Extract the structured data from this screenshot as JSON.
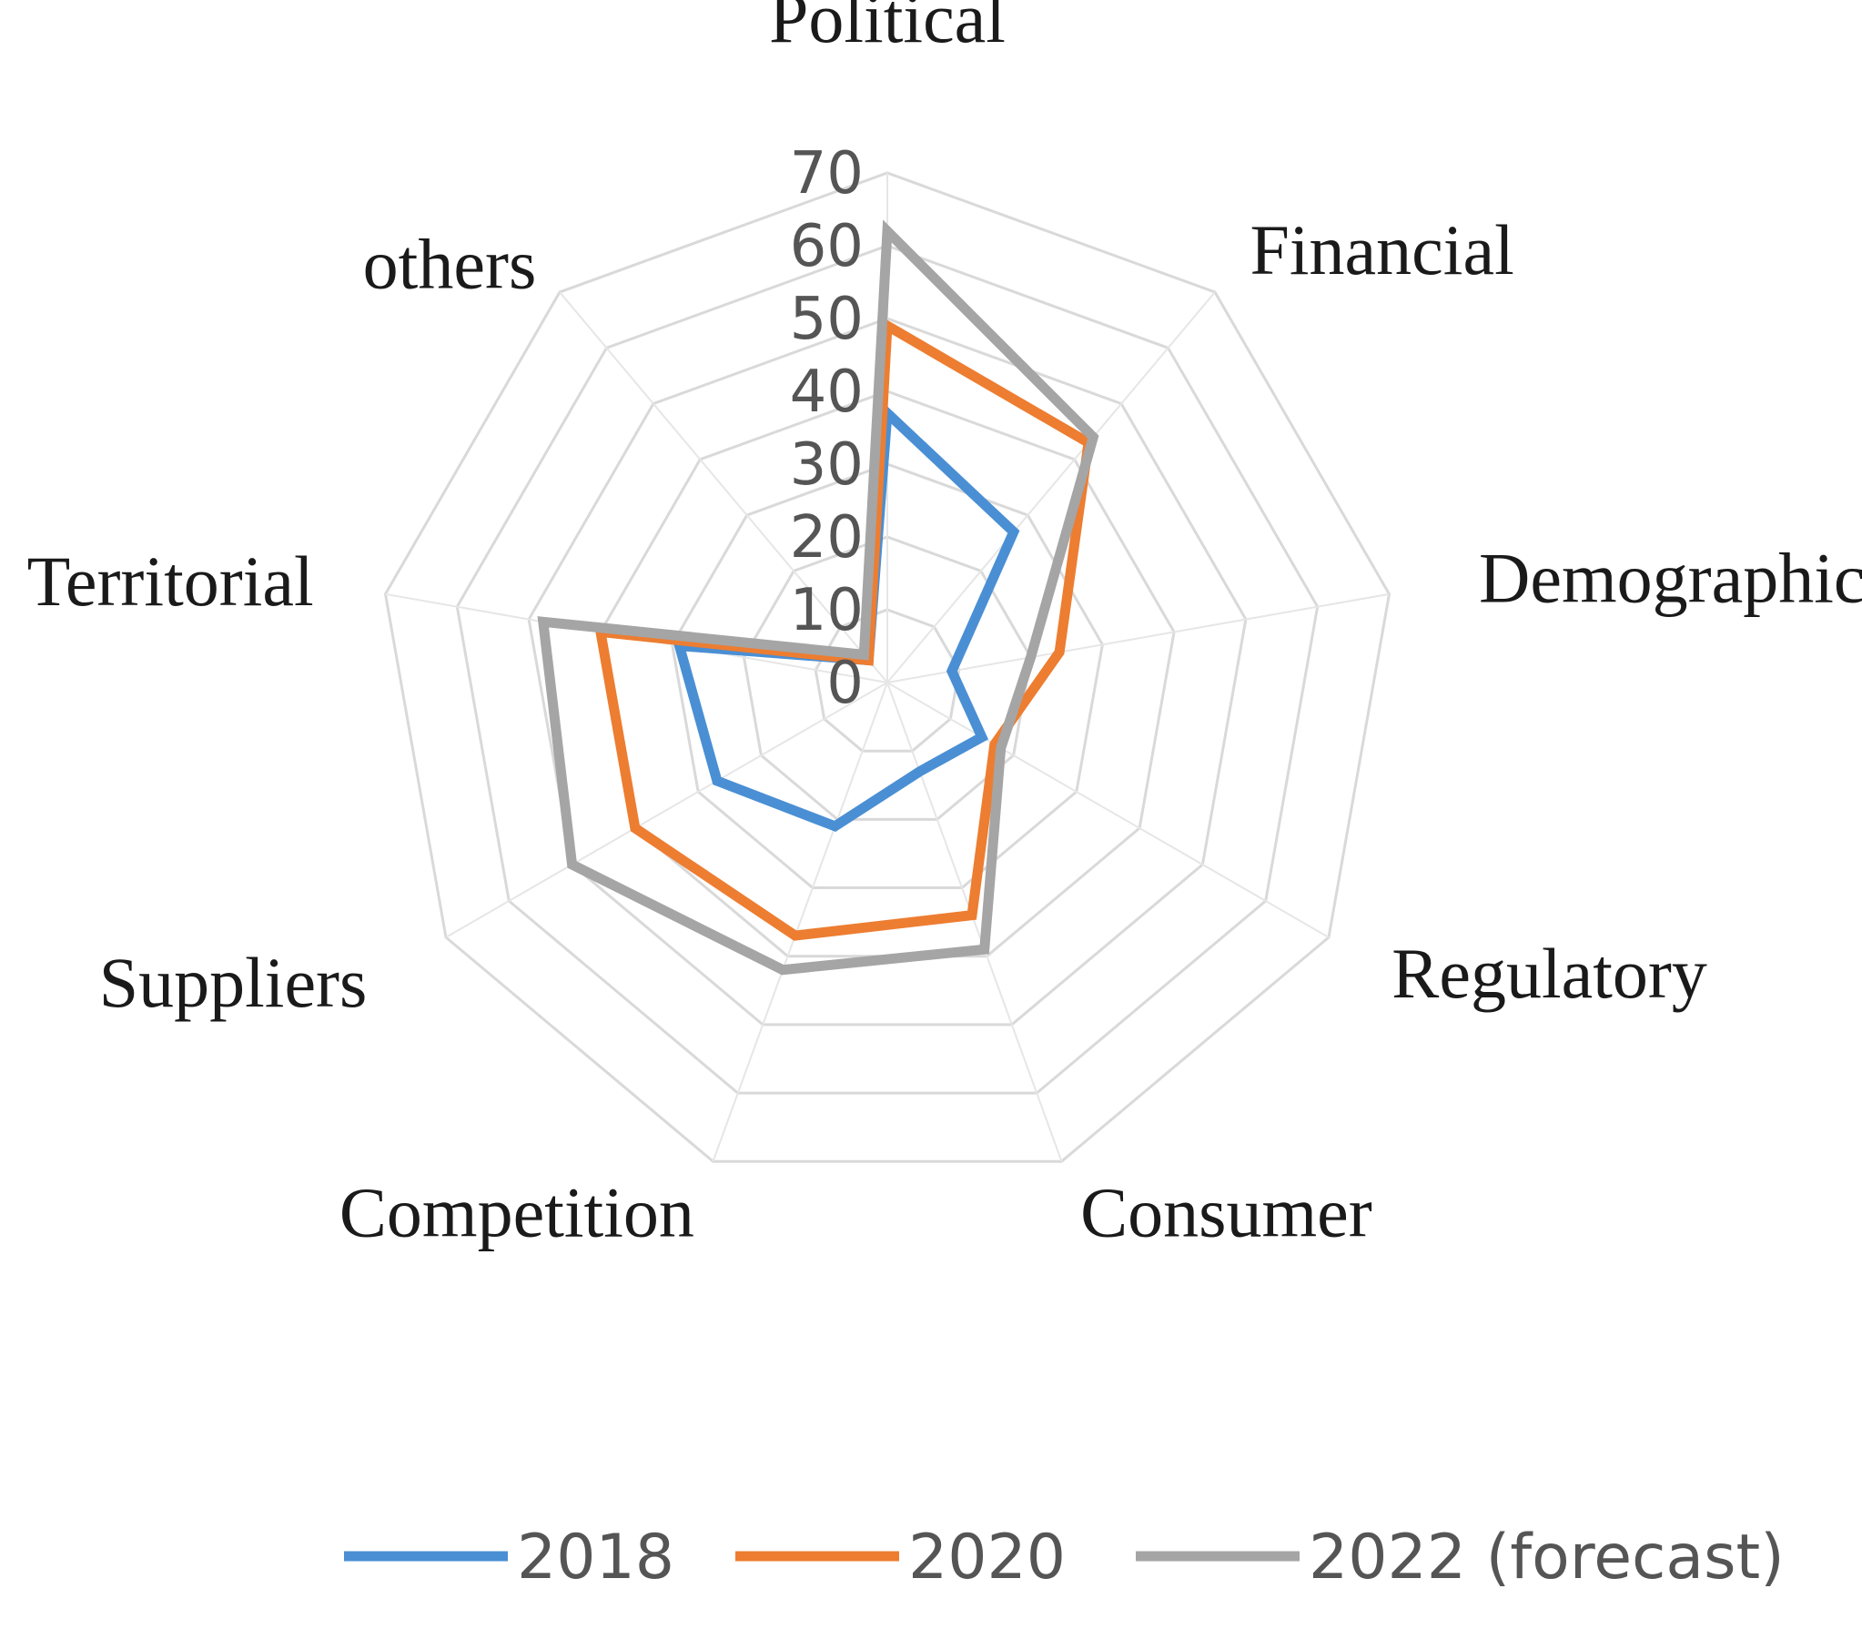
{
  "chart_data": {
    "type": "radar",
    "categories": [
      "Political",
      "Financial",
      "Demographic",
      "Regulatory",
      "Consumer",
      "Competition",
      "Suppliers",
      "Territorial",
      "others"
    ],
    "rmax": 70,
    "ticks": [
      0,
      10,
      20,
      30,
      40,
      50,
      60,
      70
    ],
    "tick_labels": [
      "0",
      "10",
      "20",
      "30",
      "40",
      "50",
      "60",
      "70"
    ],
    "series": [
      {
        "name": "2018",
        "color": "#4a8fd4",
        "values": [
          37,
          27,
          9,
          15,
          13,
          21,
          27,
          29,
          4
        ]
      },
      {
        "name": "2020",
        "color": "#ed7d31",
        "values": [
          49,
          43,
          24,
          17,
          34,
          37,
          40,
          40,
          4
        ]
      },
      {
        "name": "2022 (forecast)",
        "color": "#a5a5a5",
        "values": [
          62,
          44,
          20,
          18,
          39,
          42,
          50,
          48,
          5
        ]
      }
    ],
    "legend_position": "bottom"
  }
}
